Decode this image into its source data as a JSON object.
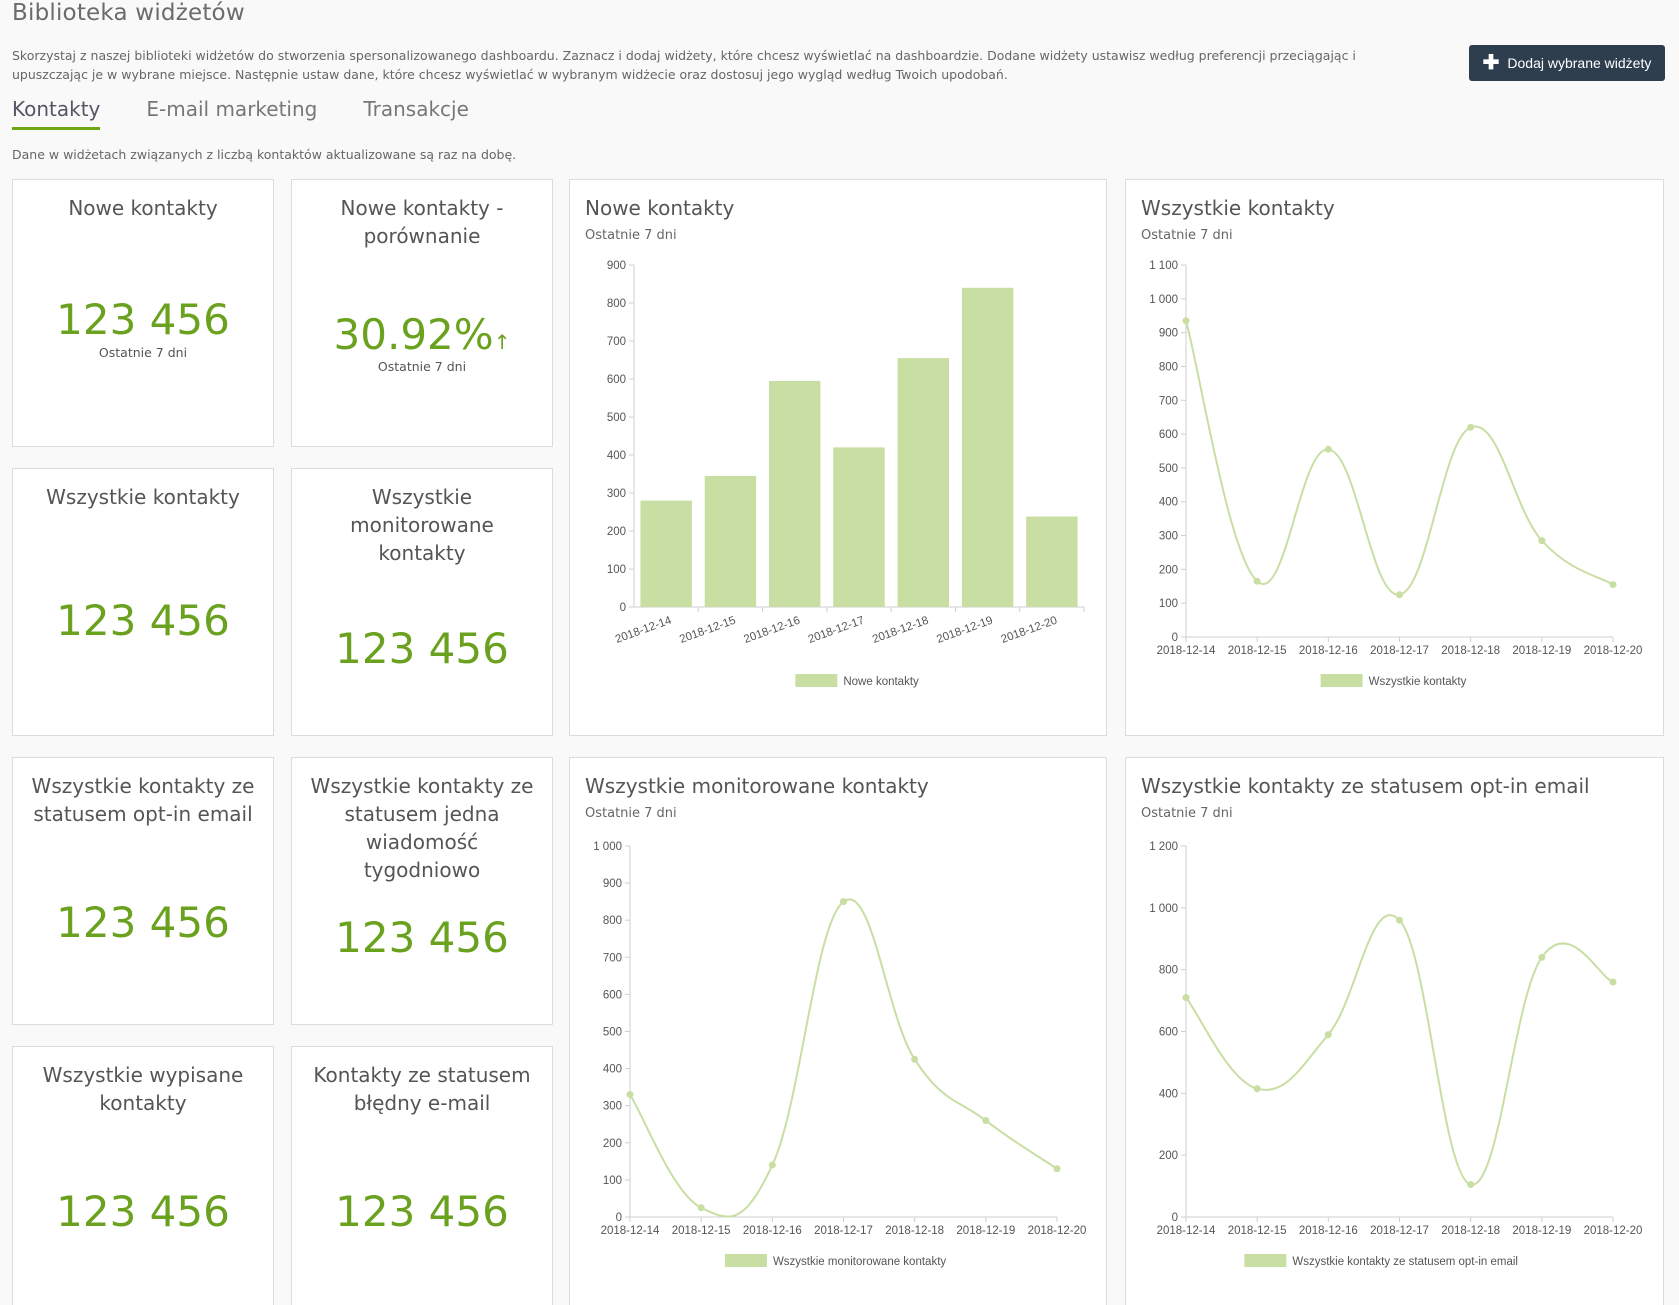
{
  "header": {
    "title": "Biblioteka widżetów",
    "intro": "Skorzystaj z naszej biblioteki widżetów do stworzenia spersonalizowanego dashboardu. Zaznacz i dodaj widżety, które chcesz wyświetlać na dashboardzie. Dodane widżety ustawisz według preferencji przeciągając i upuszczając je w wybrane miejsce. Następnie ustaw dane, które chcesz wyświetlać w wybranym widżecie oraz dostosuj jego wygląd według Twoich upodobań.",
    "add_button": "Dodaj wybrane widżety"
  },
  "tabs": [
    {
      "label": "Kontakty",
      "active": true
    },
    {
      "label": "E-mail marketing",
      "active": false
    },
    {
      "label": "Transakcje",
      "active": false
    }
  ],
  "info_line": "Dane w widżetach związanych z liczbą kontaktów aktualizowane są raz na dobę.",
  "colors": {
    "accent": "#6aa11e",
    "series": "#c9dea3",
    "button": "#2e3e4e"
  },
  "stats": [
    {
      "title": "Nowe kontakty",
      "value": "123 456",
      "sub": "Ostatnie 7 dni"
    },
    {
      "title": "Nowe kontakty - porównanie",
      "value": "30.92%",
      "arrow": "↑",
      "sub": "Ostatnie 7 dni"
    },
    {
      "title": "Wszystkie kontakty",
      "value": "123 456"
    },
    {
      "title": "Wszystkie monitorowane kontakty",
      "value": "123 456"
    },
    {
      "title": "Wszystkie kontakty ze statusem opt-in email",
      "value": "123 456"
    },
    {
      "title": "Wszystkie kontakty ze statusem jedna wiadomość tygodniowo",
      "value": "123 456"
    },
    {
      "title": "Wszystkie wypisane kontakty",
      "value": "123 456"
    },
    {
      "title": "Kontakty ze statusem błędny e-mail",
      "value": "123 456"
    }
  ],
  "chart_data": [
    {
      "type": "bar",
      "title": "Nowe kontakty",
      "subtitle": "Ostatnie 7 dni",
      "categories": [
        "2018-12-14",
        "2018-12-15",
        "2018-12-16",
        "2018-12-17",
        "2018-12-18",
        "2018-12-19",
        "2018-12-20"
      ],
      "series": [
        {
          "name": "Nowe kontakty",
          "values": [
            280,
            345,
            595,
            420,
            655,
            840,
            238
          ]
        }
      ],
      "ylim": [
        0,
        900
      ],
      "yticks": [
        0,
        100,
        200,
        300,
        400,
        500,
        600,
        700,
        800,
        900
      ],
      "ytick_labels": [
        "0",
        "100",
        "200",
        "300",
        "400",
        "500",
        "600",
        "700",
        "800",
        "900"
      ],
      "legend": "bottom"
    },
    {
      "type": "line",
      "title": "Wszystkie kontakty",
      "subtitle": "Ostatnie 7 dni",
      "categories": [
        "2018-12-14",
        "2018-12-15",
        "2018-12-16",
        "2018-12-17",
        "2018-12-18",
        "2018-12-19",
        "2018-12-20"
      ],
      "series": [
        {
          "name": "Wszystkie kontakty",
          "values": [
            935,
            165,
            555,
            125,
            620,
            285,
            155
          ]
        }
      ],
      "ylim": [
        0,
        1100
      ],
      "yticks": [
        0,
        100,
        200,
        300,
        400,
        500,
        600,
        700,
        800,
        900,
        1000,
        1100
      ],
      "ytick_labels": [
        "0",
        "100",
        "200",
        "300",
        "400",
        "500",
        "600",
        "700",
        "800",
        "900",
        "1 000",
        "1 100"
      ],
      "legend": "bottom"
    },
    {
      "type": "line",
      "title": "Wszystkie monitorowane kontakty",
      "subtitle": "Ostatnie 7 dni",
      "categories": [
        "2018-12-14",
        "2018-12-15",
        "2018-12-16",
        "2018-12-17",
        "2018-12-18",
        "2018-12-19",
        "2018-12-20"
      ],
      "series": [
        {
          "name": "Wszystkie monitorowane kontakty",
          "values": [
            330,
            25,
            140,
            850,
            425,
            260,
            130
          ]
        }
      ],
      "ylim": [
        0,
        1000
      ],
      "yticks": [
        0,
        100,
        200,
        300,
        400,
        500,
        600,
        700,
        800,
        900,
        1000
      ],
      "ytick_labels": [
        "0",
        "100",
        "200",
        "300",
        "400",
        "500",
        "600",
        "700",
        "800",
        "900",
        "1 000"
      ],
      "legend": "bottom"
    },
    {
      "type": "line",
      "title": "Wszystkie kontakty ze statusem opt-in email",
      "subtitle": "Ostatnie 7 dni",
      "categories": [
        "2018-12-14",
        "2018-12-15",
        "2018-12-16",
        "2018-12-17",
        "2018-12-18",
        "2018-12-19",
        "2018-12-20"
      ],
      "series": [
        {
          "name": "Wszystkie kontakty ze statusem opt-in email",
          "values": [
            710,
            415,
            590,
            960,
            105,
            840,
            760
          ]
        }
      ],
      "ylim": [
        0,
        1200
      ],
      "yticks": [
        0,
        200,
        400,
        600,
        800,
        1000,
        1200
      ],
      "ytick_labels": [
        "0",
        "200",
        "400",
        "600",
        "800",
        "1 000",
        "1 200"
      ],
      "legend": "bottom"
    }
  ]
}
